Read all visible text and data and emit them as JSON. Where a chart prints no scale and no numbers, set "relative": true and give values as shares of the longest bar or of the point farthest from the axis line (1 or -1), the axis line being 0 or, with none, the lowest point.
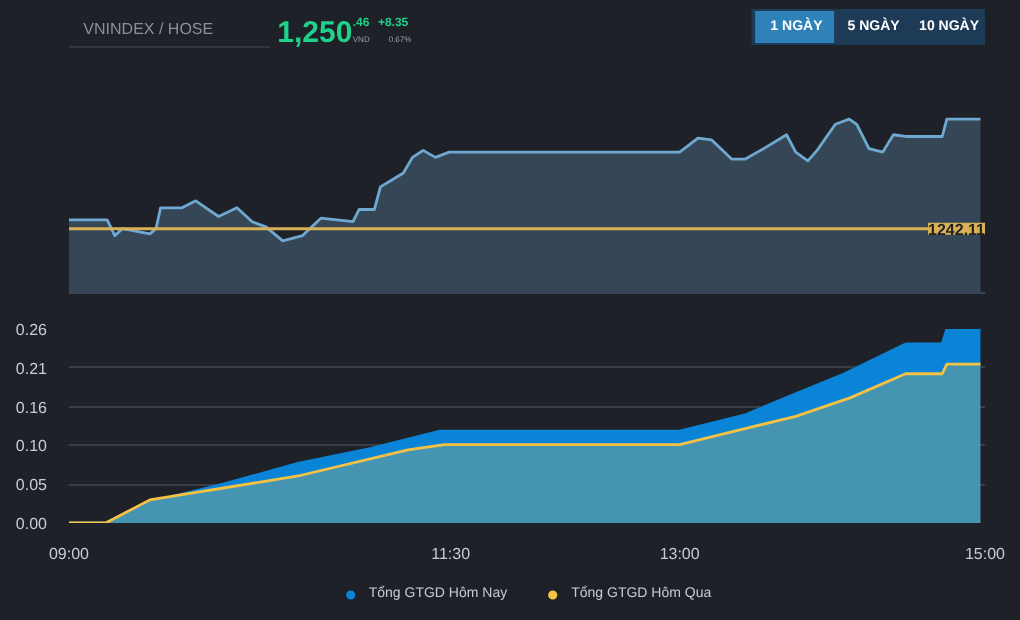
{
  "chart_data": [
    {
      "type": "area",
      "title": "VNINDEX / HOSE",
      "annotations": [
        "1,250",
        ".46",
        "VND",
        "+8.35",
        "0.67%",
        "1 NGÀY",
        "5 NGÀY",
        "10 NGÀY",
        "1242.11"
      ],
      "relative": true,
      "xlim": [
        9,
        15
      ],
      "series": [
        {
          "color": "#6fa8d0",
          "x": [
            9.0,
            9.25,
            9.3,
            9.35,
            9.53,
            9.57,
            9.6,
            9.74,
            9.83,
            9.98,
            10.1,
            10.2,
            10.29,
            10.4,
            10.53,
            10.65,
            10.86,
            10.9,
            11.0,
            11.04,
            11.19,
            11.25,
            11.32,
            11.4,
            11.49,
            13.0,
            13.12,
            13.21,
            13.34,
            13.43,
            13.55,
            13.7,
            13.76,
            13.84,
            13.9,
            14.02,
            14.11,
            14.16,
            14.24,
            14.33,
            14.4,
            14.48,
            14.72,
            14.75,
            14.97
          ],
          "values": [
            0.42,
            0.42,
            0.33,
            0.37,
            0.34,
            0.37,
            0.49,
            0.49,
            0.53,
            0.44,
            0.49,
            0.41,
            0.38,
            0.3,
            0.33,
            0.43,
            0.41,
            0.48,
            0.48,
            0.61,
            0.69,
            0.78,
            0.82,
            0.78,
            0.81,
            0.81,
            0.89,
            0.88,
            0.77,
            0.77,
            0.83,
            0.91,
            0.81,
            0.76,
            0.82,
            0.97,
            1.0,
            0.97,
            0.83,
            0.81,
            0.91,
            0.9,
            0.9,
            1.0,
            1.0
          ]
        }
      ],
      "ref_lines": [
        {
          "axis": "y",
          "value": 0.37,
          "color": "#d8b056"
        }
      ]
    },
    {
      "type": "area",
      "xlim": [
        9,
        15
      ],
      "xticks": [
        {
          "value": 9,
          "label": "09:00"
        },
        {
          "value": 11.5,
          "label": "11:30"
        },
        {
          "value": 13,
          "label": "13:00"
        },
        {
          "value": 15,
          "label": "15:00"
        }
      ],
      "ylim": [
        0,
        0.26
      ],
      "yticks": [
        {
          "value": 0,
          "label": "0.00"
        },
        {
          "value": 0.052,
          "label": "0.05"
        },
        {
          "value": 0.104,
          "label": "0.10"
        },
        {
          "value": 0.156,
          "label": "0.16"
        },
        {
          "value": 0.208,
          "label": "0.21"
        },
        {
          "value": 0.26,
          "label": "0.26"
        }
      ],
      "grid": "y",
      "legend": "bottom",
      "series": [
        {
          "name": "Tổng GTGD Hôm Nay",
          "color": "#0a84d6",
          "x": [
            9.0,
            9.24,
            9.53,
            10.01,
            10.5,
            10.98,
            11.43,
            13.0,
            13.43,
            13.76,
            14.08,
            14.48,
            14.72,
            14.75,
            14.97
          ],
          "values": [
            0,
            0,
            0.028,
            0.052,
            0.08,
            0.1,
            0.123,
            0.123,
            0.145,
            0.173,
            0.2,
            0.24,
            0.24,
            0.26,
            0.26
          ]
        },
        {
          "name": "Tổng GTGD Hôm Qua",
          "color": "#f6c244",
          "x": [
            9.0,
            9.24,
            9.53,
            9.74,
            10.5,
            11.22,
            11.46,
            13.0,
            13.36,
            13.76,
            14.12,
            14.48,
            14.72,
            14.75,
            14.97
          ],
          "values": [
            0,
            0,
            0.031,
            0.038,
            0.063,
            0.098,
            0.105,
            0.105,
            0.123,
            0.143,
            0.168,
            0.2,
            0.2,
            0.213,
            0.213
          ]
        }
      ]
    }
  ]
}
